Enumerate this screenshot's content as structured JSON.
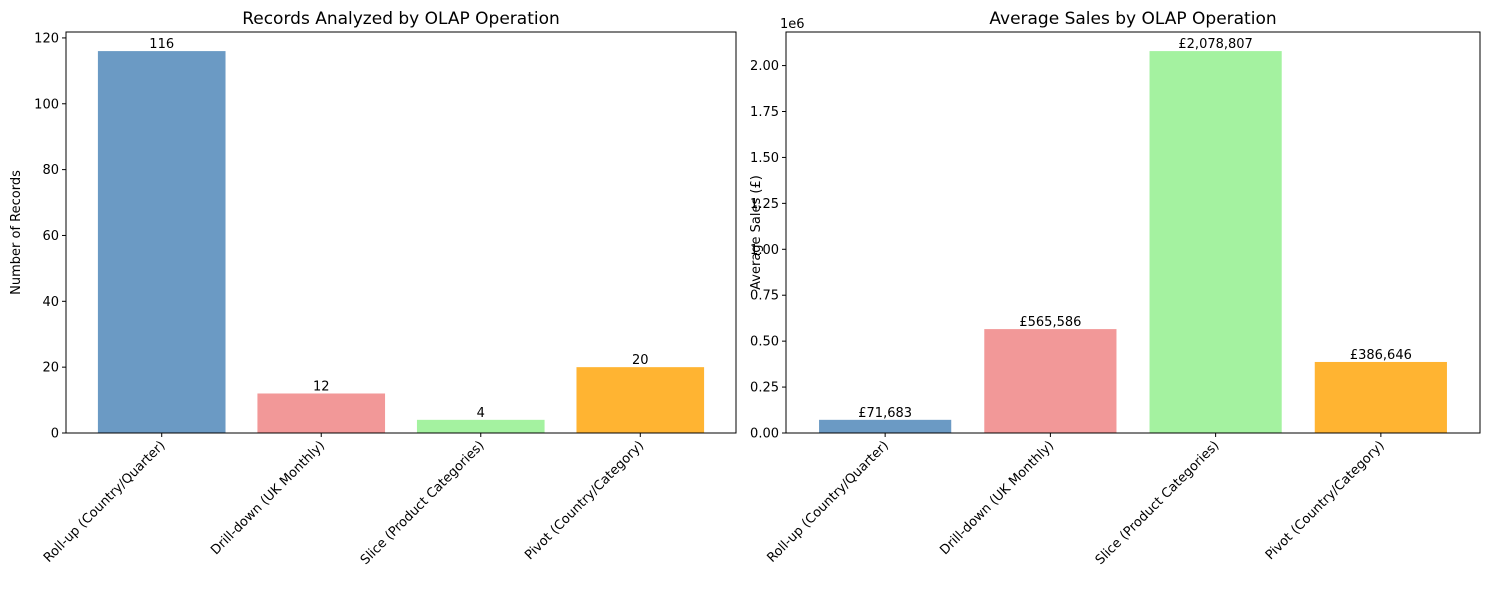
{
  "chart_data": [
    {
      "type": "bar",
      "title": "Records Analyzed by OLAP Operation",
      "xlabel": "",
      "ylabel": "Number of Records",
      "categories": [
        "Roll-up (Country/Quarter)",
        "Drill-down (UK Monthly)",
        "Slice (Product Categories)",
        "Pivot (Country/Category)"
      ],
      "values": [
        116,
        12,
        4,
        20
      ],
      "value_labels": [
        "116",
        "12",
        "4",
        "20"
      ],
      "colors": [
        "#6b9ac4",
        "#f29898",
        "#a4f2a0",
        "#ffb432"
      ],
      "ylim": [
        0,
        121.8
      ],
      "yticks": [
        0,
        20,
        40,
        60,
        80,
        100,
        120
      ],
      "ytick_labels": [
        "0",
        "20",
        "40",
        "60",
        "80",
        "100",
        "120"
      ],
      "offset_label": "",
      "grid": false
    },
    {
      "type": "bar",
      "title": "Average Sales by OLAP Operation",
      "xlabel": "",
      "ylabel": "Average Sales (£)",
      "categories": [
        "Roll-up (Country/Quarter)",
        "Drill-down (UK Monthly)",
        "Slice (Product Categories)",
        "Pivot (Country/Category)"
      ],
      "values": [
        71683,
        565586,
        2078807,
        386646
      ],
      "value_labels": [
        "£71,683",
        "£565,586",
        "£2,078,807",
        "£386,646"
      ],
      "colors": [
        "#6b9ac4",
        "#f29898",
        "#a4f2a0",
        "#ffb432"
      ],
      "ylim": [
        0,
        2182747
      ],
      "yticks": [
        0,
        250000,
        500000,
        750000,
        1000000,
        1250000,
        1500000,
        1750000,
        2000000
      ],
      "ytick_labels": [
        "0.00",
        "0.25",
        "0.50",
        "0.75",
        "1.00",
        "1.25",
        "1.50",
        "1.75",
        "2.00"
      ],
      "offset_label": "1e6",
      "grid": false
    }
  ]
}
